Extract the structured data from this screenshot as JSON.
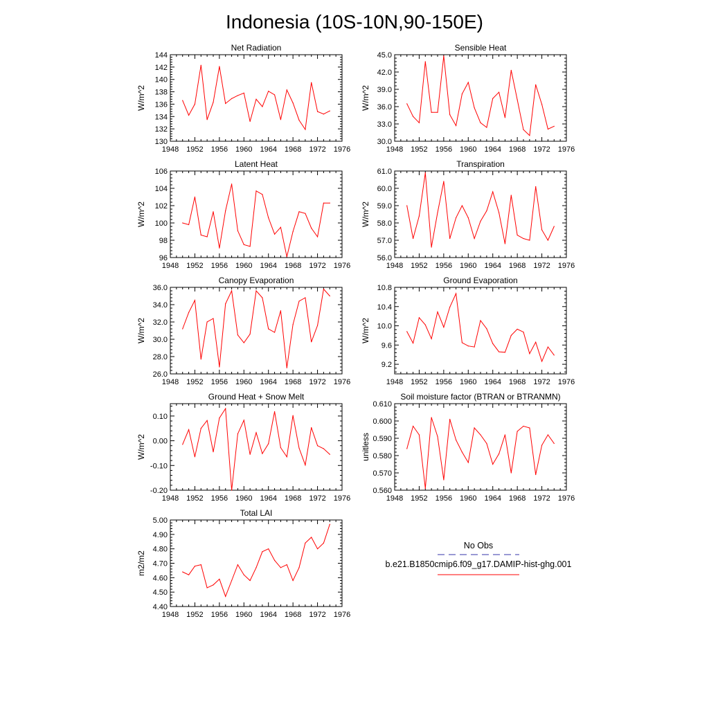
{
  "page_title": "Indonesia (10S-10N,90-150E)",
  "colors": {
    "model_line": "#ff0000",
    "obs_line": "#3333aa",
    "axis": "#000000"
  },
  "legend": {
    "obs_label": "No Obs",
    "model_label": "b.e21.B1850cmip6.f09_g17.DAMIP-hist-ghg.001"
  },
  "chart_data": [
    {
      "id": "net-radiation",
      "type": "line",
      "title": "Net Radiation",
      "ylabel": "W/m^2",
      "xlim": [
        1948,
        1976
      ],
      "ylim": [
        130,
        144
      ],
      "xticks": [
        "1948",
        "1952",
        "1956",
        "1960",
        "1964",
        "1968",
        "1972",
        "1976"
      ],
      "yticks": [
        "130",
        "132",
        "134",
        "136",
        "138",
        "140",
        "142",
        "144"
      ],
      "series": [
        {
          "x": [
            1950,
            1951,
            1952,
            1953,
            1954,
            1955,
            1956,
            1957,
            1958,
            1959,
            1960,
            1961,
            1962,
            1963,
            1964,
            1965,
            1966,
            1967,
            1968,
            1969,
            1970,
            1971,
            1972,
            1973,
            1974
          ],
          "values": [
            136.6,
            134.2,
            136.0,
            142.3,
            133.5,
            136.3,
            142.1,
            136.1,
            136.9,
            137.4,
            137.8,
            133.2,
            136.8,
            135.6,
            138.1,
            137.5,
            133.5,
            138.3,
            136.2,
            133.4,
            131.9,
            139.5,
            134.8,
            134.4,
            134.9
          ]
        }
      ]
    },
    {
      "id": "sensible-heat",
      "type": "line",
      "title": "Sensible Heat",
      "ylabel": "W/m^2",
      "xlim": [
        1948,
        1976
      ],
      "ylim": [
        30.0,
        45.0
      ],
      "xticks": [
        "1948",
        "1952",
        "1956",
        "1960",
        "1964",
        "1968",
        "1972",
        "1976"
      ],
      "yticks": [
        "30.0",
        "33.0",
        "36.0",
        "39.0",
        "42.0",
        "45.0"
      ],
      "series": [
        {
          "x": [
            1950,
            1951,
            1952,
            1953,
            1954,
            1955,
            1956,
            1957,
            1958,
            1959,
            1960,
            1961,
            1962,
            1963,
            1964,
            1965,
            1966,
            1967,
            1968,
            1969,
            1970,
            1971,
            1972,
            1973,
            1974
          ],
          "values": [
            36.5,
            34.3,
            33.2,
            43.8,
            35.0,
            35.0,
            44.8,
            34.6,
            32.7,
            38.2,
            40.2,
            35.8,
            33.2,
            32.4,
            37.4,
            38.5,
            34.1,
            42.3,
            37.2,
            32.0,
            31.0,
            39.8,
            36.4,
            32.1,
            32.6
          ]
        }
      ]
    },
    {
      "id": "latent-heat",
      "type": "line",
      "title": "Latent Heat",
      "ylabel": "W/m^2",
      "xlim": [
        1948,
        1976
      ],
      "ylim": [
        96,
        106
      ],
      "xticks": [
        "1948",
        "1952",
        "1956",
        "1960",
        "1964",
        "1968",
        "1972",
        "1976"
      ],
      "yticks": [
        "96",
        "98",
        "100",
        "102",
        "104",
        "106"
      ],
      "series": [
        {
          "x": [
            1950,
            1951,
            1952,
            1953,
            1954,
            1955,
            1956,
            1957,
            1958,
            1959,
            1960,
            1961,
            1962,
            1963,
            1964,
            1965,
            1966,
            1967,
            1968,
            1969,
            1970,
            1971,
            1972,
            1973,
            1974
          ],
          "values": [
            100.0,
            99.8,
            103.0,
            98.6,
            98.4,
            101.3,
            97.1,
            101.4,
            104.5,
            99.1,
            97.5,
            97.3,
            103.7,
            103.3,
            100.6,
            98.7,
            99.5,
            96.1,
            99.0,
            101.3,
            101.1,
            99.4,
            98.4,
            102.3,
            102.3
          ]
        }
      ]
    },
    {
      "id": "transpiration",
      "type": "line",
      "title": "Transpiration",
      "ylabel": "W/m^2",
      "xlim": [
        1948,
        1976
      ],
      "ylim": [
        56.0,
        61.0
      ],
      "xticks": [
        "1948",
        "1952",
        "1956",
        "1960",
        "1964",
        "1968",
        "1972",
        "1976"
      ],
      "yticks": [
        "56.0",
        "57.0",
        "58.0",
        "59.0",
        "60.0",
        "61.0"
      ],
      "series": [
        {
          "x": [
            1950,
            1951,
            1952,
            1953,
            1954,
            1955,
            1956,
            1957,
            1958,
            1959,
            1960,
            1961,
            1962,
            1963,
            1964,
            1965,
            1966,
            1967,
            1968,
            1969,
            1970,
            1971,
            1972,
            1973,
            1974
          ],
          "values": [
            59.0,
            57.1,
            58.4,
            60.9,
            56.6,
            58.6,
            60.4,
            57.1,
            58.3,
            59.0,
            58.3,
            57.1,
            58.1,
            58.7,
            59.8,
            58.6,
            56.8,
            59.6,
            57.3,
            57.1,
            57.0,
            60.1,
            57.6,
            57.0,
            57.8
          ]
        }
      ]
    },
    {
      "id": "canopy-evaporation",
      "type": "line",
      "title": "Canopy Evaporation",
      "ylabel": "W/m^2",
      "xlim": [
        1948,
        1976
      ],
      "ylim": [
        26.0,
        36.0
      ],
      "xticks": [
        "1948",
        "1952",
        "1956",
        "1960",
        "1964",
        "1968",
        "1972",
        "1976"
      ],
      "yticks": [
        "26.0",
        "28.0",
        "30.0",
        "32.0",
        "34.0",
        "36.0"
      ],
      "series": [
        {
          "x": [
            1950,
            1951,
            1952,
            1953,
            1954,
            1955,
            1956,
            1957,
            1958,
            1959,
            1960,
            1961,
            1962,
            1963,
            1964,
            1965,
            1966,
            1967,
            1968,
            1969,
            1970,
            1971,
            1972,
            1973,
            1974
          ],
          "values": [
            31.2,
            33.1,
            34.5,
            27.7,
            32.0,
            32.4,
            26.8,
            34.1,
            35.6,
            30.5,
            29.6,
            30.6,
            35.6,
            34.8,
            31.2,
            30.8,
            33.3,
            26.7,
            31.7,
            34.4,
            34.8,
            29.7,
            31.6,
            35.8,
            35.0
          ]
        }
      ]
    },
    {
      "id": "ground-evaporation",
      "type": "line",
      "title": "Ground Evaporation",
      "ylabel": "W/m^2",
      "xlim": [
        1948,
        1976
      ],
      "ylim": [
        9.0,
        10.8
      ],
      "xticks": [
        "1948",
        "1952",
        "1956",
        "1960",
        "1964",
        "1968",
        "1972",
        "1976"
      ],
      "yticks": [
        "9.2",
        "9.6",
        "10.0",
        "10.4",
        "10.8"
      ],
      "ytick_values": [
        9.2,
        9.6,
        10.0,
        10.4,
        10.8
      ],
      "series": [
        {
          "x": [
            1950,
            1951,
            1952,
            1953,
            1954,
            1955,
            1956,
            1957,
            1958,
            1959,
            1960,
            1961,
            1962,
            1963,
            1964,
            1965,
            1966,
            1967,
            1968,
            1969,
            1970,
            1971,
            1972,
            1973,
            1974
          ],
          "values": [
            9.88,
            9.64,
            10.17,
            10.02,
            9.73,
            10.29,
            9.97,
            10.39,
            10.67,
            9.65,
            9.58,
            9.56,
            10.11,
            9.94,
            9.63,
            9.46,
            9.45,
            9.8,
            9.93,
            9.87,
            9.42,
            9.66,
            9.26,
            9.56,
            9.39
          ]
        }
      ]
    },
    {
      "id": "ground-heat-snow-melt",
      "type": "line",
      "title": "Ground Heat + Snow Melt",
      "ylabel": "W/m^2",
      "xlim": [
        1948,
        1976
      ],
      "ylim": [
        -0.2,
        0.15
      ],
      "xticks": [
        "1948",
        "1952",
        "1956",
        "1960",
        "1964",
        "1968",
        "1972",
        "1976"
      ],
      "yticks": [
        "-0.20",
        "-0.10",
        "0.00",
        "0.10"
      ],
      "ytick_values": [
        -0.2,
        -0.1,
        0.0,
        0.1
      ],
      "series": [
        {
          "x": [
            1950,
            1951,
            1952,
            1953,
            1954,
            1955,
            1956,
            1957,
            1958,
            1959,
            1960,
            1961,
            1962,
            1963,
            1964,
            1965,
            1966,
            1967,
            1968,
            1969,
            1970,
            1971,
            1972,
            1973,
            1974
          ],
          "values": [
            -0.015,
            0.045,
            -0.065,
            0.05,
            0.082,
            -0.045,
            0.092,
            0.13,
            -0.2,
            0.028,
            0.083,
            -0.055,
            0.033,
            -0.052,
            -0.012,
            0.118,
            -0.028,
            -0.065,
            0.102,
            -0.03,
            -0.098,
            0.053,
            -0.02,
            -0.032,
            -0.055
          ]
        }
      ]
    },
    {
      "id": "soil-moisture-factor",
      "type": "line",
      "title": "Soil moisture factor (BTRAN or BTRANMN)",
      "ylabel": "unitless",
      "xlim": [
        1948,
        1976
      ],
      "ylim": [
        0.56,
        0.61
      ],
      "xticks": [
        "1948",
        "1952",
        "1956",
        "1960",
        "1964",
        "1968",
        "1972",
        "1976"
      ],
      "yticks": [
        "0.560",
        "0.570",
        "0.580",
        "0.590",
        "0.600",
        "0.610"
      ],
      "series": [
        {
          "x": [
            1950,
            1951,
            1952,
            1953,
            1954,
            1955,
            1956,
            1957,
            1958,
            1959,
            1960,
            1961,
            1962,
            1963,
            1964,
            1965,
            1966,
            1967,
            1968,
            1969,
            1970,
            1971,
            1972,
            1973,
            1974
          ],
          "values": [
            0.584,
            0.597,
            0.592,
            0.561,
            0.602,
            0.591,
            0.566,
            0.601,
            0.589,
            0.582,
            0.576,
            0.596,
            0.592,
            0.587,
            0.575,
            0.581,
            0.592,
            0.57,
            0.594,
            0.597,
            0.596,
            0.569,
            0.586,
            0.592,
            0.587
          ]
        }
      ]
    },
    {
      "id": "total-lai",
      "type": "line",
      "title": "Total LAI",
      "ylabel": "m2/m2",
      "xlim": [
        1948,
        1976
      ],
      "ylim": [
        4.4,
        5.0
      ],
      "xticks": [
        "1948",
        "1952",
        "1956",
        "1960",
        "1964",
        "1968",
        "1972",
        "1976"
      ],
      "yticks": [
        "4.40",
        "4.50",
        "4.60",
        "4.70",
        "4.80",
        "4.90",
        "5.00"
      ],
      "series": [
        {
          "x": [
            1950,
            1951,
            1952,
            1953,
            1954,
            1955,
            1956,
            1957,
            1958,
            1959,
            1960,
            1961,
            1962,
            1963,
            1964,
            1965,
            1966,
            1967,
            1968,
            1969,
            1970,
            1971,
            1972,
            1973,
            1974
          ],
          "values": [
            4.64,
            4.62,
            4.68,
            4.69,
            4.53,
            4.55,
            4.59,
            4.47,
            4.58,
            4.69,
            4.62,
            4.58,
            4.67,
            4.78,
            4.8,
            4.72,
            4.67,
            4.69,
            4.58,
            4.67,
            4.84,
            4.88,
            4.8,
            4.84,
            4.97
          ]
        }
      ]
    }
  ]
}
